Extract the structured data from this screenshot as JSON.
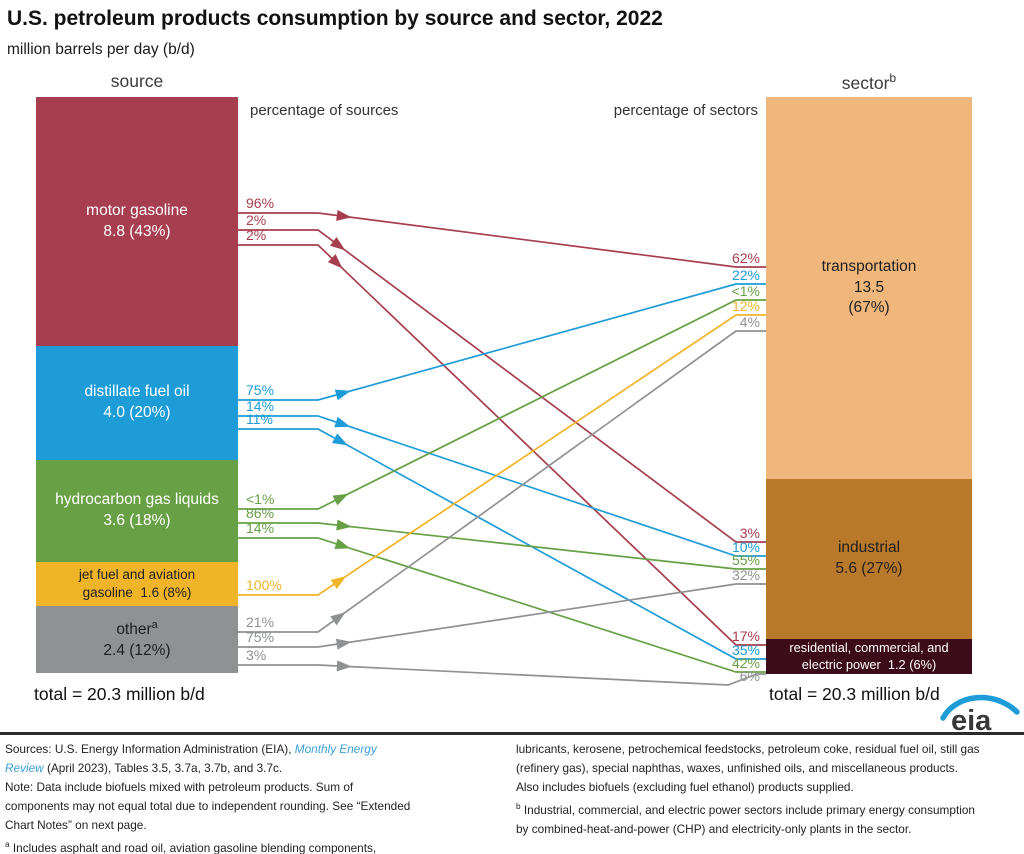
{
  "title": "U.S. petroleum products consumption by source and sector, 2022",
  "subtitle": "million barrels per day (b/d)",
  "column_headers": {
    "source": "source",
    "sector": "sector",
    "sector_footnote": "b"
  },
  "pct_headers": {
    "left": "percentage of sources",
    "right": "percentage of sectors"
  },
  "totals": {
    "left": "total = 20.3 million b/d",
    "right": "total = 20.3 million b/d"
  },
  "logo_text": "eia",
  "chart_data": {
    "type": "sankey",
    "title": "U.S. petroleum products consumption by source and sector, 2022",
    "unit": "million barrels per day (b/d)",
    "total": 20.3,
    "sources": [
      {
        "name": "motor gasoline",
        "value": 8.8,
        "pct": "43%",
        "value_label": "8.8 (43%)",
        "color": "#A63E4F",
        "text_color": "#ffffff"
      },
      {
        "name": "distillate fuel oil",
        "value": 4.0,
        "pct": "20%",
        "value_label": "4.0 (20%)",
        "color": "#1E9CD8",
        "text_color": "#ffffff"
      },
      {
        "name": "hydrocarbon gas liquids",
        "value": 3.6,
        "pct": "18%",
        "value_label": "3.6 (18%)",
        "color": "#68A046",
        "text_color": "#ffffff"
      },
      {
        "name": "jet fuel and aviation gasoline",
        "value": 1.6,
        "pct": "8%",
        "value_label": "1.6 (8%)",
        "color": "#F0B429",
        "text_color": "#1f1f1f"
      },
      {
        "name": "other",
        "footnote": "a",
        "value": 2.4,
        "pct": "12%",
        "value_label": "2.4 (12%)",
        "color": "#8F9193",
        "text_color": "#1f1f1f"
      }
    ],
    "sectors": [
      {
        "name": "transportation",
        "value": 13.5,
        "pct": "(67%)",
        "value_label": "13.5",
        "color": "#F0B77D",
        "text_color": "#1f1f1f"
      },
      {
        "name": "industrial",
        "value": 5.6,
        "pct": "27%",
        "value_label": "5.6  (27%)",
        "color": "#B9792B",
        "text_color": "#1f1f1f"
      },
      {
        "name": "residential, commercial, and electric power",
        "value": 1.2,
        "pct": "6%",
        "value_label": "1.2  (6%)",
        "color": "#3D0C1A",
        "text_color": "#ffffff"
      }
    ],
    "flows": [
      {
        "source": 0,
        "sector": 0,
        "pct_of_source": "96%",
        "pct_of_sector": "62%"
      },
      {
        "source": 0,
        "sector": 1,
        "pct_of_source": "2%",
        "pct_of_sector": "3%"
      },
      {
        "source": 0,
        "sector": 2,
        "pct_of_source": "2%",
        "pct_of_sector": "17%"
      },
      {
        "source": 1,
        "sector": 0,
        "pct_of_source": "75%",
        "pct_of_sector": "22%"
      },
      {
        "source": 1,
        "sector": 1,
        "pct_of_source": "14%",
        "pct_of_sector": "10%"
      },
      {
        "source": 1,
        "sector": 2,
        "pct_of_source": "11%",
        "pct_of_sector": "35%"
      },
      {
        "source": 2,
        "sector": 0,
        "pct_of_source": "<1%",
        "pct_of_sector": "<1%"
      },
      {
        "source": 2,
        "sector": 1,
        "pct_of_source": "86%",
        "pct_of_sector": "55%"
      },
      {
        "source": 2,
        "sector": 2,
        "pct_of_source": "14%",
        "pct_of_sector": "42%"
      },
      {
        "source": 3,
        "sector": 0,
        "pct_of_source": "100%",
        "pct_of_sector": "12%"
      },
      {
        "source": 4,
        "sector": 0,
        "pct_of_source": "21%",
        "pct_of_sector": "4%"
      },
      {
        "source": 4,
        "sector": 1,
        "pct_of_source": "75%",
        "pct_of_sector": "32%"
      },
      {
        "source": 4,
        "sector": 2,
        "pct_of_source": "3%",
        "pct_of_sector": "6%"
      }
    ]
  },
  "footer": {
    "left": {
      "sources_prefix": "Sources: U.S. Energy Information Administration (EIA), ",
      "link_line1": "Monthly Energy",
      "link_line2": "Review",
      "sources_suffix": " (April 2023), Tables 3.5, 3.7a, 3.7b, and 3.7c.",
      "note_line1": "Note: Data include biofuels mixed with petroleum products. Sum of",
      "note_line2": "components may not equal total due to independent rounding. See “Extended",
      "note_line3": "Chart Notes” on next page.",
      "footnote_a_marker": "a",
      "footnote_a_text": " Includes asphalt and road oil, aviation gasoline blending components,"
    },
    "right": {
      "line1": "lubricants, kerosene, petrochemical feedstocks, petroleum coke, residual fuel oil, still gas",
      "line2": "(refinery gas), special naphthas, waxes, unfinished oils, and miscellaneous products.",
      "line3": "Also includes biofuels (excluding fuel ethanol) products supplied.",
      "footnote_b_marker": "b",
      "footnote_b_line1": " Industrial, commercial, and electric power sectors include primary energy consumption",
      "footnote_b_line2": "by combined-heat-and-power (CHP) and electricity-only plants in the sector."
    }
  }
}
